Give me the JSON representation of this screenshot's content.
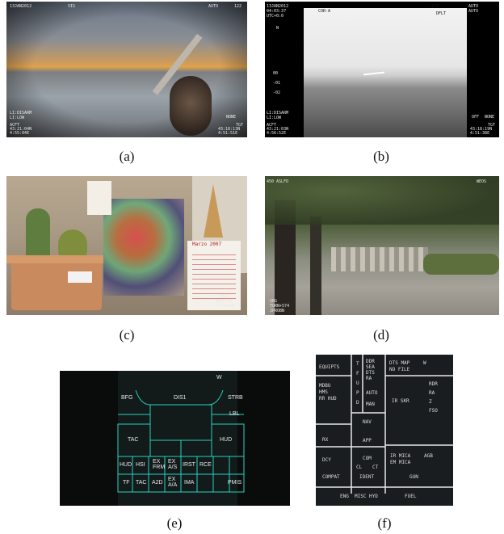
{
  "captions": {
    "a": "(a)",
    "b": "(b)",
    "c": "(c)",
    "d": "(d)",
    "e": "(e)",
    "f": "(f)"
  },
  "panel_a": {
    "top_left": "13JAN2012",
    "top_vis": "VIS",
    "top_auto": "AUTO",
    "top_num": "122",
    "left_mode": "LI:DISARM",
    "left_mode2": "LI:LOW",
    "bottom_left1": "ACFT",
    "bottom_left2": "43:21:04N",
    "bottom_left3": "4:55:04E",
    "bottom_right1": "TGT",
    "bottom_right2": "NONE",
    "bottom_right3": "43:18:13N",
    "bottom_right4": "4:51:51E"
  },
  "panel_b": {
    "top_left1": "13JAN2012",
    "top_left2": "04:03:37",
    "top_left3": "UTC+0:0",
    "top_mode": "COR-A",
    "top_num": "135",
    "top_right1": "AUTO",
    "top_right2": "AUTO",
    "top_dflt": "DFLT",
    "north": "N",
    "scale1": "00",
    "scale2": "-01",
    "scale3": "-02",
    "left_mode": "LI:DISARM",
    "left_mode2": "LI:LOW",
    "bottom_left1": "ACFT",
    "bottom_left2": "43:21:03N",
    "bottom_left3": "4:56:52E",
    "right_off": "OFF",
    "right_none": "NONE",
    "bottom_right1": "TGT",
    "bottom_right2": "43:18:19N",
    "bottom_right3": "4:51:38E"
  },
  "panel_c": {
    "calendar": "Marzo 2007",
    "bottom_right1": "M558",
    "bottom_right2": "3004:04",
    "bottom_right3": "TLPPADIN"
  },
  "panel_d": {
    "top_left": "450 ASLFD",
    "top_right": "WEOS",
    "bottom_left1": "GRG",
    "bottom_left2": "TURN+574",
    "bottom_left3": "JPROBN"
  },
  "panel_e": {
    "w": "W",
    "bfg": "BFG",
    "dis1": "DIS1",
    "strb": "STRB",
    "lbl": "LBL",
    "tac": "TAC",
    "hud": "HUD",
    "row1": [
      "HUD",
      "HSI",
      "EX FRM",
      "EX A/S",
      "IRST",
      "RCE"
    ],
    "row2": [
      "TF",
      "TAC",
      "A2D",
      "EX A/A",
      "IMA",
      "",
      "PMIS"
    ]
  },
  "panel_f": {
    "equipts": "EQUIPTS",
    "tfupd_col": [
      "T",
      "F",
      "U",
      "P",
      "D"
    ],
    "ddr": "DDR",
    "sea": "SEA",
    "dts": "DTS",
    "ra": "RA",
    "auto": "AUTO",
    "man": "MAN",
    "dts_map": "DTS MAP",
    "w": "W",
    "no_file": "NO FILE",
    "mdbu": "MDBU",
    "hms": "HMS",
    "rr_hud": "RR HUD",
    "ir_skr": "IR SKR",
    "rdr": "RDR",
    "ra2": "RA",
    "z": "Z",
    "fso": "FSO",
    "nav": "NAV",
    "rx": "RX",
    "app": "APP",
    "dcy": "DCY",
    "com": "COM",
    "cl": "CL",
    "ct": "CT",
    "ident": "IDENT",
    "ir_mica": "IR MICA",
    "em_mica": "EM MICA",
    "agb": "AGB",
    "gun": "GUN",
    "compat": "COMPAT",
    "eng": "ENG",
    "misc": "MISC",
    "hyd": "HYD",
    "fuel": "FUEL"
  }
}
